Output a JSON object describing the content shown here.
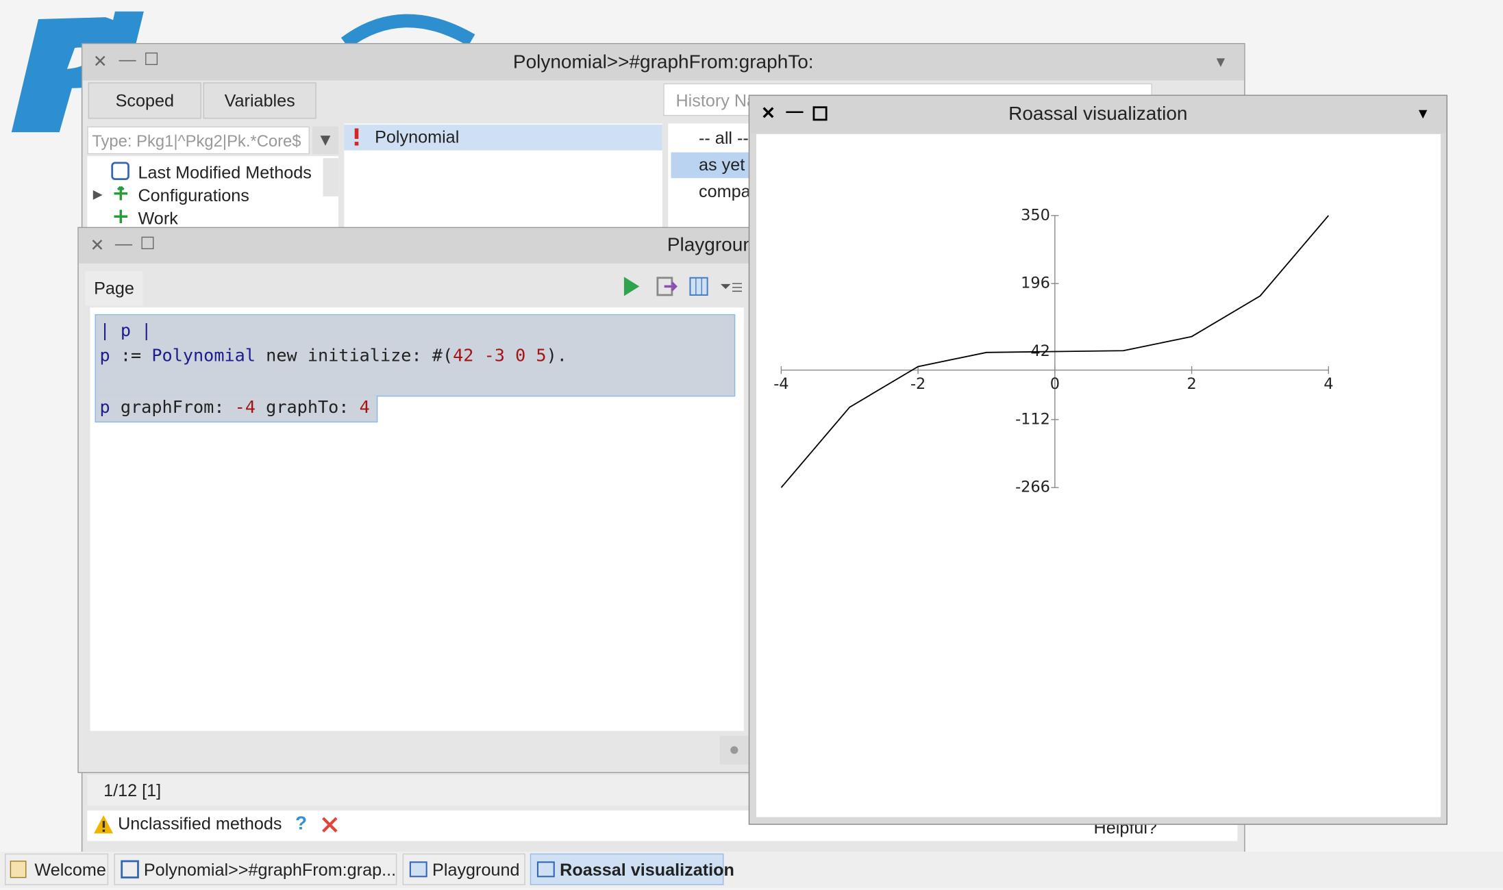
{
  "browser": {
    "title": "Polynomial>>#graphFrom:graphTo:",
    "scope_buttons": [
      "Scoped",
      "Variables"
    ],
    "history": "History Na",
    "package_filter": "Type: Pkg1|^Pkg2|Pk.*Core$",
    "packages": [
      "Last Modified Methods",
      "Configurations",
      "Work"
    ],
    "classes": [
      "Polynomial"
    ],
    "protocols": [
      "-- all --",
      "as yet unclassified",
      "comparing"
    ],
    "status": "1/12 [1]",
    "critic": "Unclassified methods",
    "critic_help": "?",
    "feedback": "Helpful?"
  },
  "playground": {
    "title": "Playground",
    "tab": "Page",
    "code": [
      [
        {
          "text": "| p |",
          "color": "#1c1c8c"
        }
      ],
      [
        {
          "text": "p",
          "color": "#1c1c8c"
        },
        {
          "text": " := ",
          "color": "#222222"
        },
        {
          "text": "Polynomial",
          "color": "#1c1c8c"
        },
        {
          "text": " new initialize: #(",
          "color": "#222222"
        },
        {
          "text": "42 -3 0 5",
          "color": "#a31515"
        },
        {
          "text": ").",
          "color": "#222222"
        }
      ],
      [
        {
          "text": "p",
          "color": "#1c1c8c"
        },
        {
          "text": " graphFrom: ",
          "color": "#222222"
        },
        {
          "text": "-4",
          "color": "#a31515"
        },
        {
          "text": " graphTo: ",
          "color": "#222222"
        },
        {
          "text": "4",
          "color": "#a31515"
        }
      ]
    ]
  },
  "roassal": {
    "title": "Roassal visualization"
  },
  "chart_data": {
    "type": "line",
    "x": [
      -4,
      -3,
      -2,
      -1,
      0,
      1,
      2,
      3,
      4
    ],
    "values": [
      -266,
      -84,
      8,
      40,
      42,
      44,
      76,
      168,
      350
    ],
    "color": "#000000",
    "xlim": [
      -4,
      4
    ],
    "ylim": [
      -266,
      350
    ],
    "xticks": [
      -4,
      -2,
      0,
      2,
      4
    ],
    "yticks": [
      350,
      196,
      42,
      -112,
      -266
    ]
  },
  "taskbar": [
    "Welcome",
    "Polynomial>>#graphFrom:grap...",
    "Playground",
    "Roassal visualization"
  ]
}
